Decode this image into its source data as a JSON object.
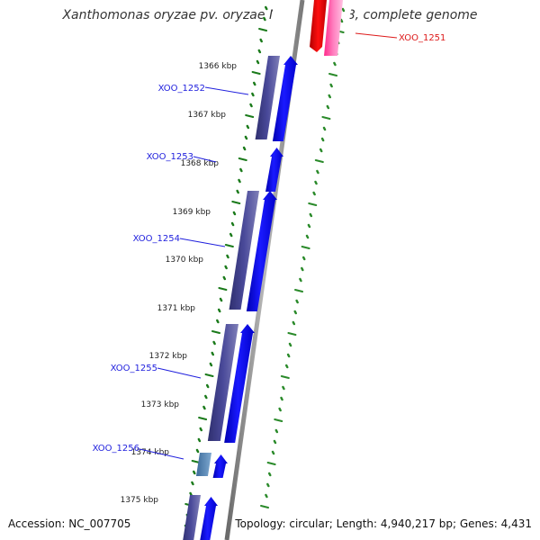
{
  "title": "Xanthomonas oryzae pv. oryzae MAFF 311018, complete genome",
  "accession": "Accession: NC_007705",
  "summary": "Topology: circular; Length: 4,940,217 bp; Genes: 4,431",
  "colors": {
    "axis": "#8a8a8a",
    "tick_major": "#1a7a1a",
    "tick_minor": "#2a8a2a",
    "gene_plus": "#0000ee",
    "cds_block": "#3f3f8f",
    "cds_block_alt": "#5a86b8",
    "gene_minus": "#ee0000",
    "cds_minus": "#ff3c9c",
    "label_plus": "#1f1fdd",
    "label_minus": "#dd1a1a"
  },
  "kbp_ticks": [
    "1366 kbp",
    "1367 kbp",
    "1368 kbp",
    "1369 kbp",
    "1370 kbp",
    "1371 kbp",
    "1372 kbp",
    "1373 kbp",
    "1374 kbp",
    "1375 kbp"
  ],
  "genes": [
    {
      "id": "XOO_1251",
      "strand": "minus"
    },
    {
      "id": "XOO_1252",
      "strand": "plus"
    },
    {
      "id": "XOO_1253",
      "strand": "plus"
    },
    {
      "id": "XOO_1254",
      "strand": "plus"
    },
    {
      "id": "XOO_1255",
      "strand": "plus"
    },
    {
      "id": "XOO_1256",
      "strand": "plus"
    }
  ]
}
